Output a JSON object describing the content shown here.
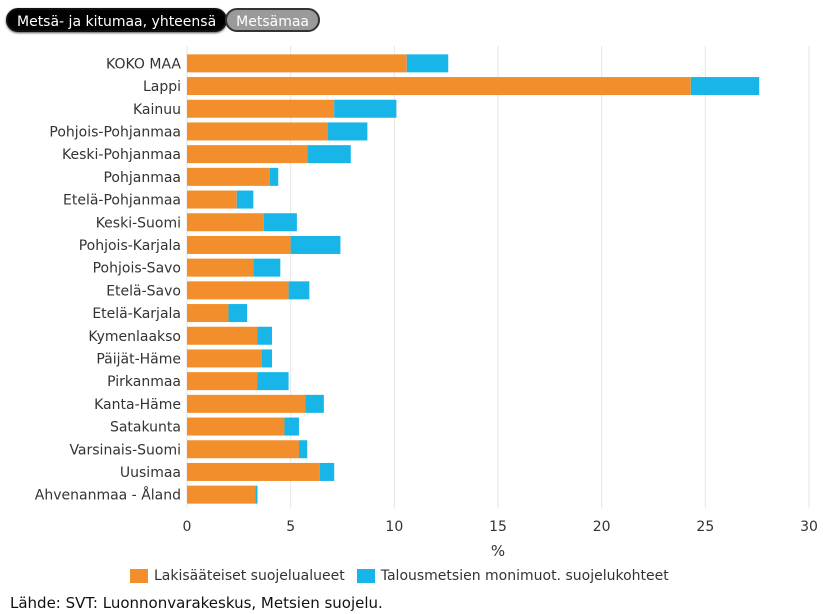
{
  "toggles": [
    {
      "label": "Metsä- ja kitumaa, yhteensä",
      "active": true
    },
    {
      "label": "Metsämaa",
      "active": false
    }
  ],
  "source": "Lähde: SVT: Luonnonvarakeskus, Metsien suojelu.",
  "colors": {
    "series1": "#f28e2b",
    "series2": "#17b5e8",
    "grid": "#e6e6e6"
  },
  "chart_data": {
    "type": "bar",
    "orientation": "horizontal",
    "stacked": true,
    "categories": [
      "KOKO MAA",
      "Lappi",
      "Kainuu",
      "Pohjois-Pohjanmaa",
      "Keski-Pohjanmaa",
      "Pohjanmaa",
      "Etelä-Pohjanmaa",
      "Keski-Suomi",
      "Pohjois-Karjala",
      "Pohjois-Savo",
      "Etelä-Savo",
      "Etelä-Karjala",
      "Kymenlaakso",
      "Päijät-Häme",
      "Pirkanmaa",
      "Kanta-Häme",
      "Satakunta",
      "Varsinais-Suomi",
      "Uusimaa",
      "Ahvenanmaa - Åland"
    ],
    "series": [
      {
        "name": "Lakisääteiset suojelualueet",
        "values": [
          10.6,
          24.3,
          7.1,
          6.8,
          5.8,
          4.0,
          2.4,
          3.7,
          5.0,
          3.2,
          4.9,
          2.0,
          3.4,
          3.6,
          3.4,
          5.7,
          4.7,
          5.4,
          6.4,
          3.3
        ]
      },
      {
        "name": "Talousmetsien monimuot. suojelukohteet",
        "values": [
          2.0,
          3.3,
          3.0,
          1.9,
          2.1,
          0.4,
          0.8,
          1.6,
          2.4,
          1.3,
          1.0,
          0.9,
          0.7,
          0.5,
          1.5,
          0.9,
          0.7,
          0.4,
          0.7,
          0.1
        ]
      }
    ],
    "xlabel": "%",
    "xlim": [
      0,
      30
    ],
    "xticks": [
      0,
      5,
      10,
      15,
      20,
      25,
      30
    ],
    "grid": true,
    "legend_position": "bottom"
  }
}
